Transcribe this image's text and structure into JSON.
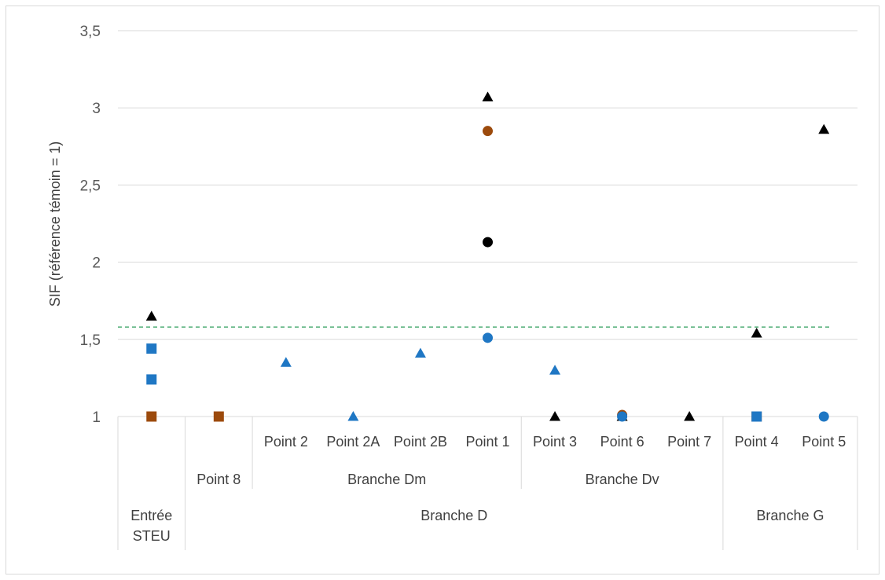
{
  "chart_data": {
    "type": "scatter",
    "ylabel": "SIF (référence  témoin = 1)",
    "ylim": [
      1,
      3.5
    ],
    "yticks": [
      1,
      1.5,
      2,
      2.5,
      3,
      3.5
    ],
    "ytick_labels": [
      "1",
      "1,5",
      "2",
      "2,5",
      "3",
      "3,5"
    ],
    "grid": "horizontal",
    "threshold_line": {
      "y": 1.58,
      "color": "#2e9e5b",
      "style": "dashed"
    },
    "categories": [
      "",
      "Point 8",
      "Point 2",
      "Point 2A",
      "Point 2B",
      "Point 1",
      "Point 3",
      "Point 6",
      "Point 7",
      "Point 4",
      "Point 5"
    ],
    "groups_level2": [
      {
        "label": "",
        "span": [
          0,
          0
        ]
      },
      {
        "label": "",
        "span": [
          1,
          1
        ]
      },
      {
        "label": "Branche Dm",
        "span": [
          2,
          5
        ]
      },
      {
        "label": "Branche Dv",
        "span": [
          6,
          8
        ]
      },
      {
        "label": "",
        "span": [
          9,
          10
        ]
      }
    ],
    "groups_level1": [
      {
        "label": "Entrée STEU",
        "lines": [
          "Entrée",
          "STEU"
        ],
        "span": [
          0,
          0
        ]
      },
      {
        "label": "Branche D",
        "lines": [
          "Branche D"
        ],
        "span": [
          1,
          8
        ]
      },
      {
        "label": "Branche G",
        "lines": [
          "Branche G"
        ],
        "span": [
          9,
          10
        ]
      }
    ],
    "marker_styles": {
      "square-blue": {
        "shape": "square",
        "color": "#1f77c4"
      },
      "square-brown": {
        "shape": "square",
        "color": "#9c4a0c"
      },
      "triangle-blue": {
        "shape": "triangle",
        "color": "#1f77c4"
      },
      "triangle-black": {
        "shape": "triangle",
        "color": "#000000"
      },
      "circle-blue": {
        "shape": "circle",
        "color": "#1f77c4"
      },
      "circle-brown": {
        "shape": "circle",
        "color": "#9c4a0c"
      },
      "circle-black": {
        "shape": "circle",
        "color": "#000000"
      }
    },
    "points": [
      {
        "cat": 0,
        "y": 1.65,
        "style": "triangle-black"
      },
      {
        "cat": 0,
        "y": 1.44,
        "style": "square-blue"
      },
      {
        "cat": 0,
        "y": 1.24,
        "style": "square-blue"
      },
      {
        "cat": 0,
        "y": 1.0,
        "style": "square-brown"
      },
      {
        "cat": 1,
        "y": 1.0,
        "style": "square-brown"
      },
      {
        "cat": 2,
        "y": 1.35,
        "style": "triangle-blue"
      },
      {
        "cat": 3,
        "y": 1.0,
        "style": "triangle-blue"
      },
      {
        "cat": 4,
        "y": 1.41,
        "style": "triangle-blue"
      },
      {
        "cat": 5,
        "y": 3.07,
        "style": "triangle-black"
      },
      {
        "cat": 5,
        "y": 2.85,
        "style": "circle-brown"
      },
      {
        "cat": 5,
        "y": 2.13,
        "style": "circle-black"
      },
      {
        "cat": 5,
        "y": 1.51,
        "style": "circle-blue"
      },
      {
        "cat": 6,
        "y": 1.3,
        "style": "triangle-blue"
      },
      {
        "cat": 6,
        "y": 1.0,
        "style": "triangle-black"
      },
      {
        "cat": 7,
        "y": 1.01,
        "style": "circle-brown"
      },
      {
        "cat": 7,
        "y": 1.0,
        "style": "triangle-black"
      },
      {
        "cat": 7,
        "y": 1.0,
        "style": "circle-blue"
      },
      {
        "cat": 8,
        "y": 1.0,
        "style": "triangle-black"
      },
      {
        "cat": 9,
        "y": 1.54,
        "style": "triangle-black"
      },
      {
        "cat": 9,
        "y": 1.0,
        "style": "square-brown"
      },
      {
        "cat": 9,
        "y": 1.0,
        "style": "square-blue"
      },
      {
        "cat": 10,
        "y": 2.86,
        "style": "triangle-black"
      },
      {
        "cat": 10,
        "y": 1.0,
        "style": "circle-blue"
      }
    ]
  }
}
